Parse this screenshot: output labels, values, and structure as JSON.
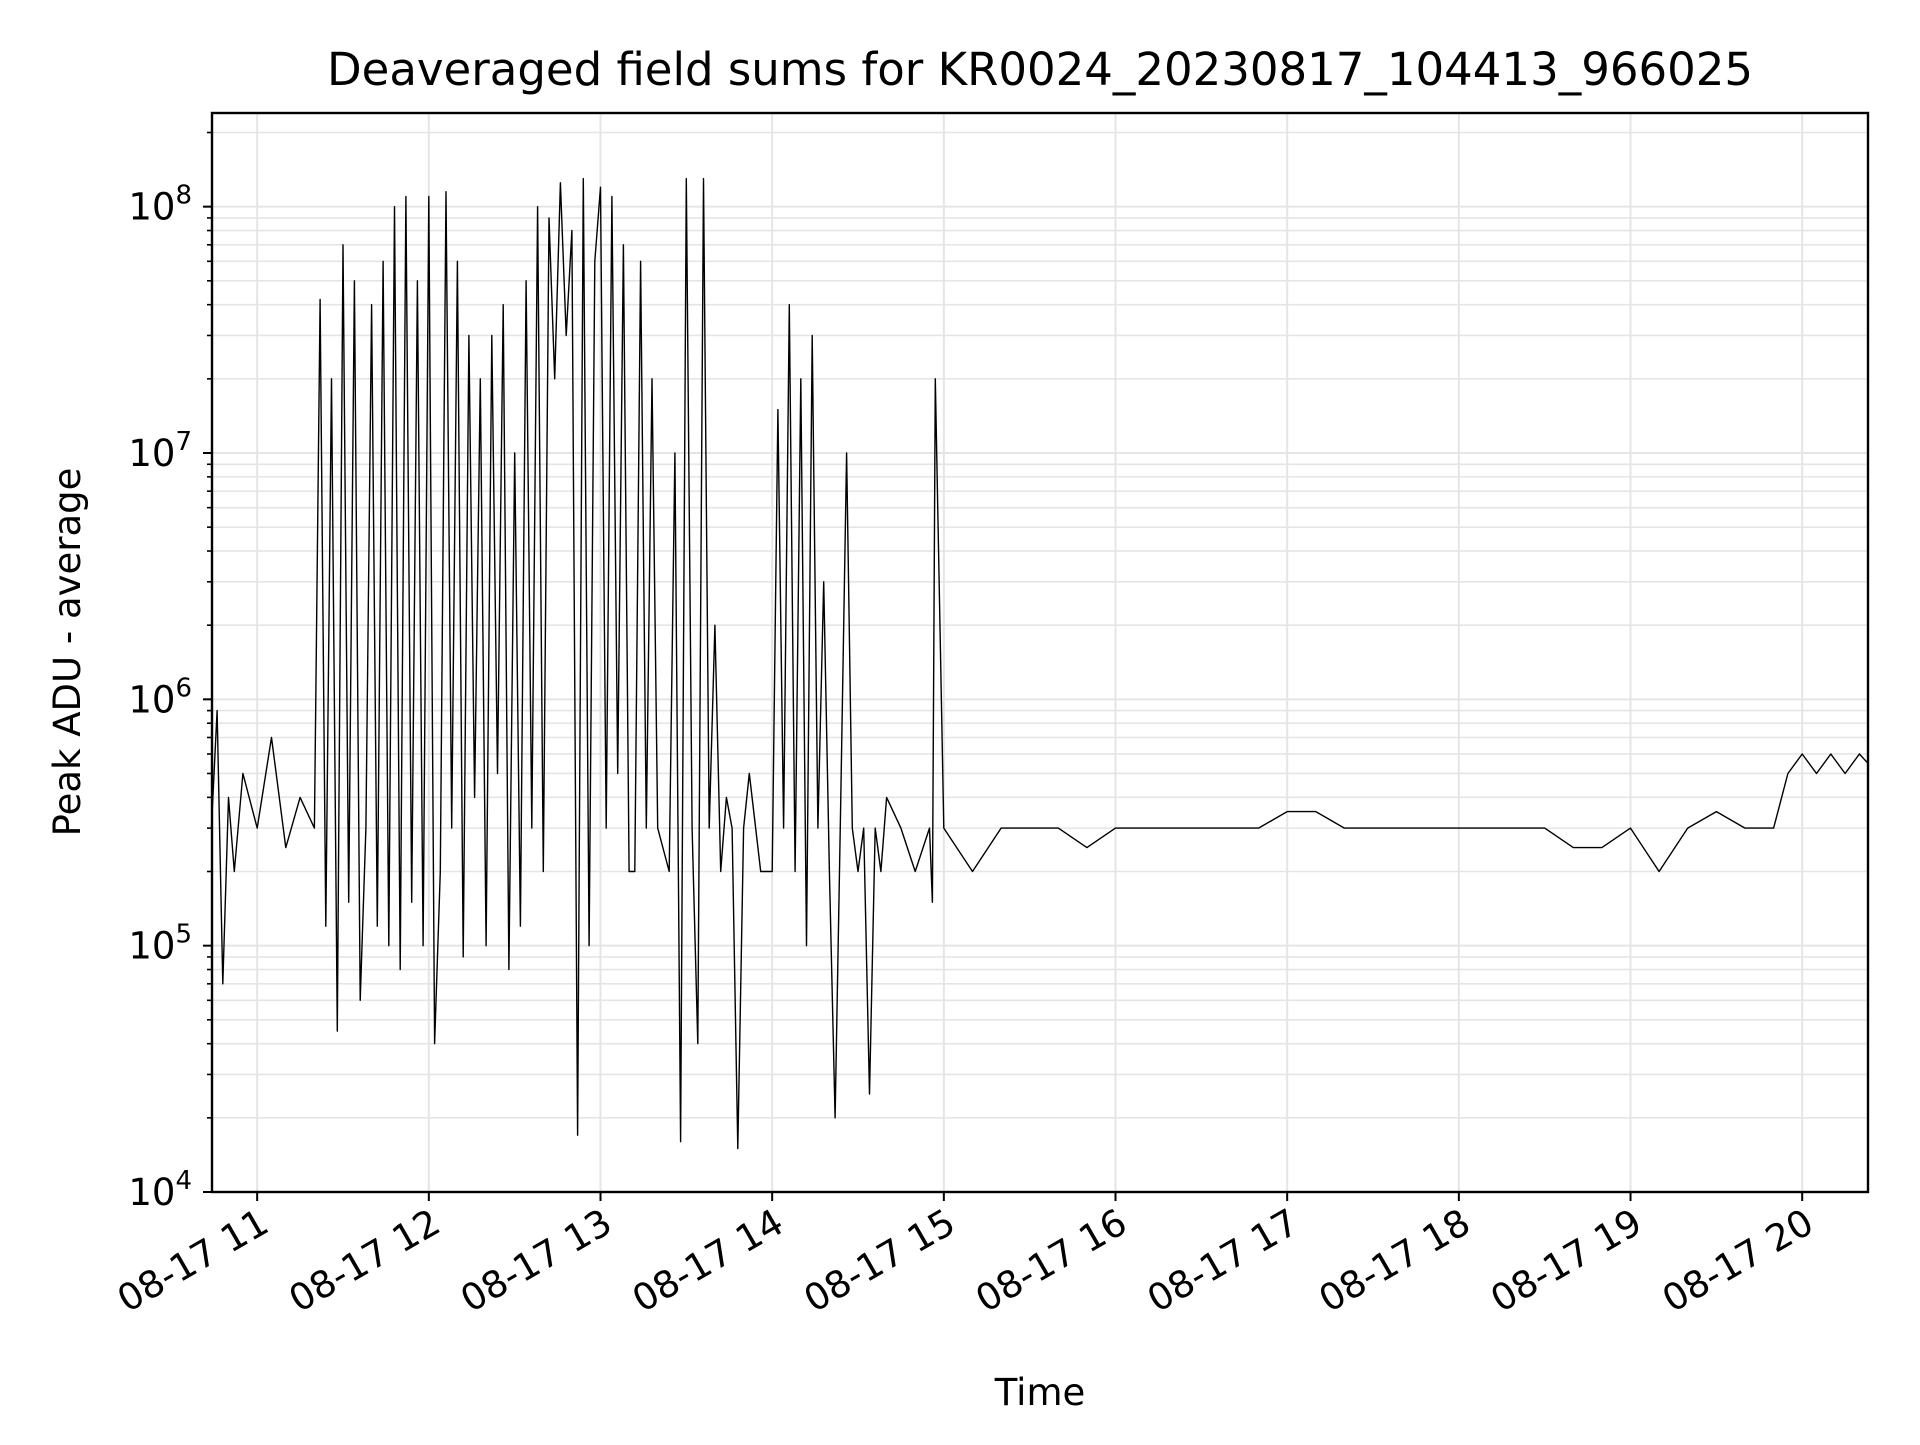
{
  "chart_data": {
    "type": "line",
    "title": "Deaveraged field sums for KR0024_20230817_104413_966025",
    "xlabel": "Time",
    "ylabel": "Peak ADU - average",
    "y_scale": "log",
    "ylim": [
      10000,
      240000000
    ],
    "xlim": [
      "2023-08-17T10:44:13",
      "2023-08-17T20:23:00"
    ],
    "grid": true,
    "legend": "none",
    "line_color": "#000000",
    "grid_color": "#e5e5e5",
    "x_ticks": [
      {
        "value": "2023-08-17T11:00",
        "label": "08-17 11"
      },
      {
        "value": "2023-08-17T12:00",
        "label": "08-17 12"
      },
      {
        "value": "2023-08-17T13:00",
        "label": "08-17 13"
      },
      {
        "value": "2023-08-17T14:00",
        "label": "08-17 14"
      },
      {
        "value": "2023-08-17T15:00",
        "label": "08-17 15"
      },
      {
        "value": "2023-08-17T16:00",
        "label": "08-17 16"
      },
      {
        "value": "2023-08-17T17:00",
        "label": "08-17 17"
      },
      {
        "value": "2023-08-17T18:00",
        "label": "08-17 18"
      },
      {
        "value": "2023-08-17T19:00",
        "label": "08-17 19"
      },
      {
        "value": "2023-08-17T20:00",
        "label": "08-17 20"
      }
    ],
    "y_ticks": [
      {
        "value": 10000,
        "base": "10",
        "exp": "4"
      },
      {
        "value": 100000,
        "base": "10",
        "exp": "5"
      },
      {
        "value": 1000000,
        "base": "10",
        "exp": "6"
      },
      {
        "value": 10000000,
        "base": "10",
        "exp": "7"
      },
      {
        "value": 100000000,
        "base": "10",
        "exp": "8"
      }
    ],
    "series": [
      {
        "x": [
          "2023-08-17T10:44",
          "2023-08-17T10:46",
          "2023-08-17T10:48",
          "2023-08-17T10:50",
          "2023-08-17T10:52",
          "2023-08-17T10:55",
          "2023-08-17T11:00",
          "2023-08-17T11:05",
          "2023-08-17T11:10",
          "2023-08-17T11:15",
          "2023-08-17T11:20",
          "2023-08-17T11:22",
          "2023-08-17T11:24",
          "2023-08-17T11:26",
          "2023-08-17T11:28",
          "2023-08-17T11:30",
          "2023-08-17T11:32",
          "2023-08-17T11:34",
          "2023-08-17T11:36",
          "2023-08-17T11:38",
          "2023-08-17T11:40",
          "2023-08-17T11:42",
          "2023-08-17T11:44",
          "2023-08-17T11:46",
          "2023-08-17T11:48",
          "2023-08-17T11:50",
          "2023-08-17T11:52",
          "2023-08-17T11:54",
          "2023-08-17T11:56",
          "2023-08-17T11:58",
          "2023-08-17T12:00",
          "2023-08-17T12:02",
          "2023-08-17T12:04",
          "2023-08-17T12:06",
          "2023-08-17T12:08",
          "2023-08-17T12:10",
          "2023-08-17T12:12",
          "2023-08-17T12:14",
          "2023-08-17T12:16",
          "2023-08-17T12:18",
          "2023-08-17T12:20",
          "2023-08-17T12:22",
          "2023-08-17T12:24",
          "2023-08-17T12:26",
          "2023-08-17T12:28",
          "2023-08-17T12:30",
          "2023-08-17T12:32",
          "2023-08-17T12:34",
          "2023-08-17T12:36",
          "2023-08-17T12:38",
          "2023-08-17T12:40",
          "2023-08-17T12:42",
          "2023-08-17T12:44",
          "2023-08-17T12:46",
          "2023-08-17T12:48",
          "2023-08-17T12:50",
          "2023-08-17T12:52",
          "2023-08-17T12:54",
          "2023-08-17T12:56",
          "2023-08-17T12:58",
          "2023-08-17T13:00",
          "2023-08-17T13:02",
          "2023-08-17T13:04",
          "2023-08-17T13:06",
          "2023-08-17T13:08",
          "2023-08-17T13:10",
          "2023-08-17T13:12",
          "2023-08-17T13:14",
          "2023-08-17T13:16",
          "2023-08-17T13:18",
          "2023-08-17T13:20",
          "2023-08-17T13:24",
          "2023-08-17T13:26",
          "2023-08-17T13:28",
          "2023-08-17T13:30",
          "2023-08-17T13:32",
          "2023-08-17T13:34",
          "2023-08-17T13:36",
          "2023-08-17T13:38",
          "2023-08-17T13:40",
          "2023-08-17T13:42",
          "2023-08-17T13:44",
          "2023-08-17T13:46",
          "2023-08-17T13:48",
          "2023-08-17T13:50",
          "2023-08-17T13:52",
          "2023-08-17T13:56",
          "2023-08-17T14:00",
          "2023-08-17T14:02",
          "2023-08-17T14:04",
          "2023-08-17T14:06",
          "2023-08-17T14:08",
          "2023-08-17T14:10",
          "2023-08-17T14:12",
          "2023-08-17T14:14",
          "2023-08-17T14:16",
          "2023-08-17T14:18",
          "2023-08-17T14:20",
          "2023-08-17T14:22",
          "2023-08-17T14:24",
          "2023-08-17T14:26",
          "2023-08-17T14:28",
          "2023-08-17T14:30",
          "2023-08-17T14:32",
          "2023-08-17T14:34",
          "2023-08-17T14:36",
          "2023-08-17T14:38",
          "2023-08-17T14:40",
          "2023-08-17T14:45",
          "2023-08-17T14:50",
          "2023-08-17T14:55",
          "2023-08-17T14:56",
          "2023-08-17T14:57",
          "2023-08-17T15:00",
          "2023-08-17T15:10",
          "2023-08-17T15:20",
          "2023-08-17T15:30",
          "2023-08-17T15:40",
          "2023-08-17T15:50",
          "2023-08-17T16:00",
          "2023-08-17T16:10",
          "2023-08-17T16:20",
          "2023-08-17T16:30",
          "2023-08-17T16:40",
          "2023-08-17T16:50",
          "2023-08-17T17:00",
          "2023-08-17T17:10",
          "2023-08-17T17:20",
          "2023-08-17T17:30",
          "2023-08-17T17:40",
          "2023-08-17T17:50",
          "2023-08-17T18:00",
          "2023-08-17T18:10",
          "2023-08-17T18:20",
          "2023-08-17T18:30",
          "2023-08-17T18:40",
          "2023-08-17T18:50",
          "2023-08-17T19:00",
          "2023-08-17T19:10",
          "2023-08-17T19:20",
          "2023-08-17T19:30",
          "2023-08-17T19:40",
          "2023-08-17T19:50",
          "2023-08-17T19:55",
          "2023-08-17T20:00",
          "2023-08-17T20:05",
          "2023-08-17T20:10",
          "2023-08-17T20:15",
          "2023-08-17T20:20",
          "2023-08-17T20:23"
        ],
        "values": [
          300000,
          900000,
          70000,
          400000,
          200000,
          500000,
          300000,
          700000,
          250000,
          400000,
          300000,
          42000000,
          120000,
          20000000,
          45000,
          70000000,
          150000,
          50000000,
          60000,
          300000,
          40000000,
          120000,
          60000000,
          100000,
          100000000,
          80000,
          110000000,
          150000,
          50000000,
          100000,
          110000000,
          40000,
          200000,
          115000000,
          300000,
          60000000,
          90000,
          30000000,
          400000,
          20000000,
          100000,
          30000000,
          500000,
          40000000,
          80000,
          10000000,
          120000,
          50000000,
          300000,
          100000000,
          200000,
          90000000,
          20000000,
          125000000,
          30000000,
          80000000,
          17000,
          130000000,
          100000,
          60000000,
          120000000,
          300000,
          110000000,
          500000,
          70000000,
          200000,
          200000,
          60000000,
          300000,
          20000000,
          300000,
          200000,
          10000000,
          16000,
          130000000,
          300000,
          40000,
          130000000,
          300000,
          2000000,
          200000,
          400000,
          300000,
          15000,
          300000,
          500000,
          200000,
          200000,
          15000000,
          300000,
          40000000,
          200000,
          20000000,
          100000,
          30000000,
          300000,
          3000000,
          200000,
          20000,
          400000,
          10000000,
          300000,
          200000,
          300000,
          25000,
          300000,
          200000,
          400000,
          300000,
          200000,
          300000,
          150000,
          20000000,
          300000,
          200000,
          300000,
          300000,
          300000,
          250000,
          300000,
          300000,
          300000,
          300000,
          300000,
          300000,
          350000,
          350000,
          300000,
          300000,
          300000,
          300000,
          300000,
          300000,
          300000,
          300000,
          250000,
          250000,
          300000,
          200000,
          300000,
          350000,
          300000,
          300000,
          500000,
          600000,
          500000,
          600000,
          500000,
          600000,
          550000
        ]
      }
    ]
  }
}
